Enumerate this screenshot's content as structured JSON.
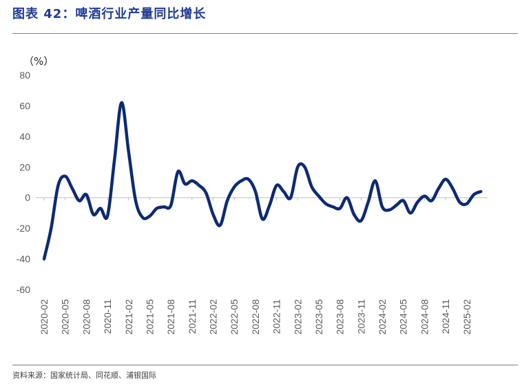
{
  "header": {
    "title": "图表 42：啤酒行业产量同比增长"
  },
  "footer": {
    "source": "资料来源：国家统计局、同花顺、浦银国际"
  },
  "colors": {
    "line": "#0d2a73",
    "title": "#1f3a93",
    "axis": "#bfbfbf"
  },
  "chart_data": {
    "type": "line",
    "title": "",
    "ylabel": "（%）",
    "xlabel": "",
    "ylim": [
      -60,
      80
    ],
    "yticks": [
      80,
      60,
      40,
      20,
      0,
      -20,
      -40,
      -60
    ],
    "grid": false,
    "legend": "none",
    "x_tick_labels": [
      "2020-02",
      "2020-05",
      "2020-08",
      "2020-11",
      "2021-02",
      "2021-05",
      "2021-08",
      "2021-11",
      "2022-02",
      "2022-05",
      "2022-08",
      "2022-11",
      "2023-02",
      "2023-05",
      "2023-08",
      "2023-11",
      "2024-02",
      "2024-05",
      "2024-08",
      "2024-11",
      "2025-02"
    ],
    "x": [
      "2020-02",
      "2020-03",
      "2020-04",
      "2020-05",
      "2020-06",
      "2020-07",
      "2020-08",
      "2020-09",
      "2020-10",
      "2020-11",
      "2020-12",
      "2021-01",
      "2021-02",
      "2021-03",
      "2021-04",
      "2021-05",
      "2021-06",
      "2021-07",
      "2021-08",
      "2021-09",
      "2021-10",
      "2021-11",
      "2021-12",
      "2022-01",
      "2022-02",
      "2022-03",
      "2022-04",
      "2022-05",
      "2022-06",
      "2022-07",
      "2022-08",
      "2022-09",
      "2022-10",
      "2022-11",
      "2022-12",
      "2023-01",
      "2023-02",
      "2023-03",
      "2023-04",
      "2023-05",
      "2023-06",
      "2023-07",
      "2023-08",
      "2023-09",
      "2023-10",
      "2023-11",
      "2023-12",
      "2024-01",
      "2024-02",
      "2024-03",
      "2024-04",
      "2024-05",
      "2024-06",
      "2024-07",
      "2024-08",
      "2024-09",
      "2024-10",
      "2024-11",
      "2024-12",
      "2025-01",
      "2025-02",
      "2025-03",
      "2025-04"
    ],
    "series": [
      {
        "values": [
          -40,
          -20,
          8,
          14,
          6,
          -2,
          2,
          -11,
          -7,
          -12,
          25,
          62,
          30,
          -2,
          -13,
          -12,
          -7,
          -6,
          -5,
          17,
          9,
          11,
          8,
          3,
          -11,
          -18,
          -2,
          7,
          11,
          12,
          4,
          -14,
          -5,
          8,
          4,
          0,
          20,
          20,
          7,
          1,
          -4,
          -6,
          -7,
          0,
          -11,
          -15,
          -3,
          11,
          -6,
          -8,
          -5,
          -2,
          -10,
          -3,
          1,
          -2,
          6,
          12,
          6,
          -3,
          -4,
          2,
          4
        ]
      }
    ]
  }
}
